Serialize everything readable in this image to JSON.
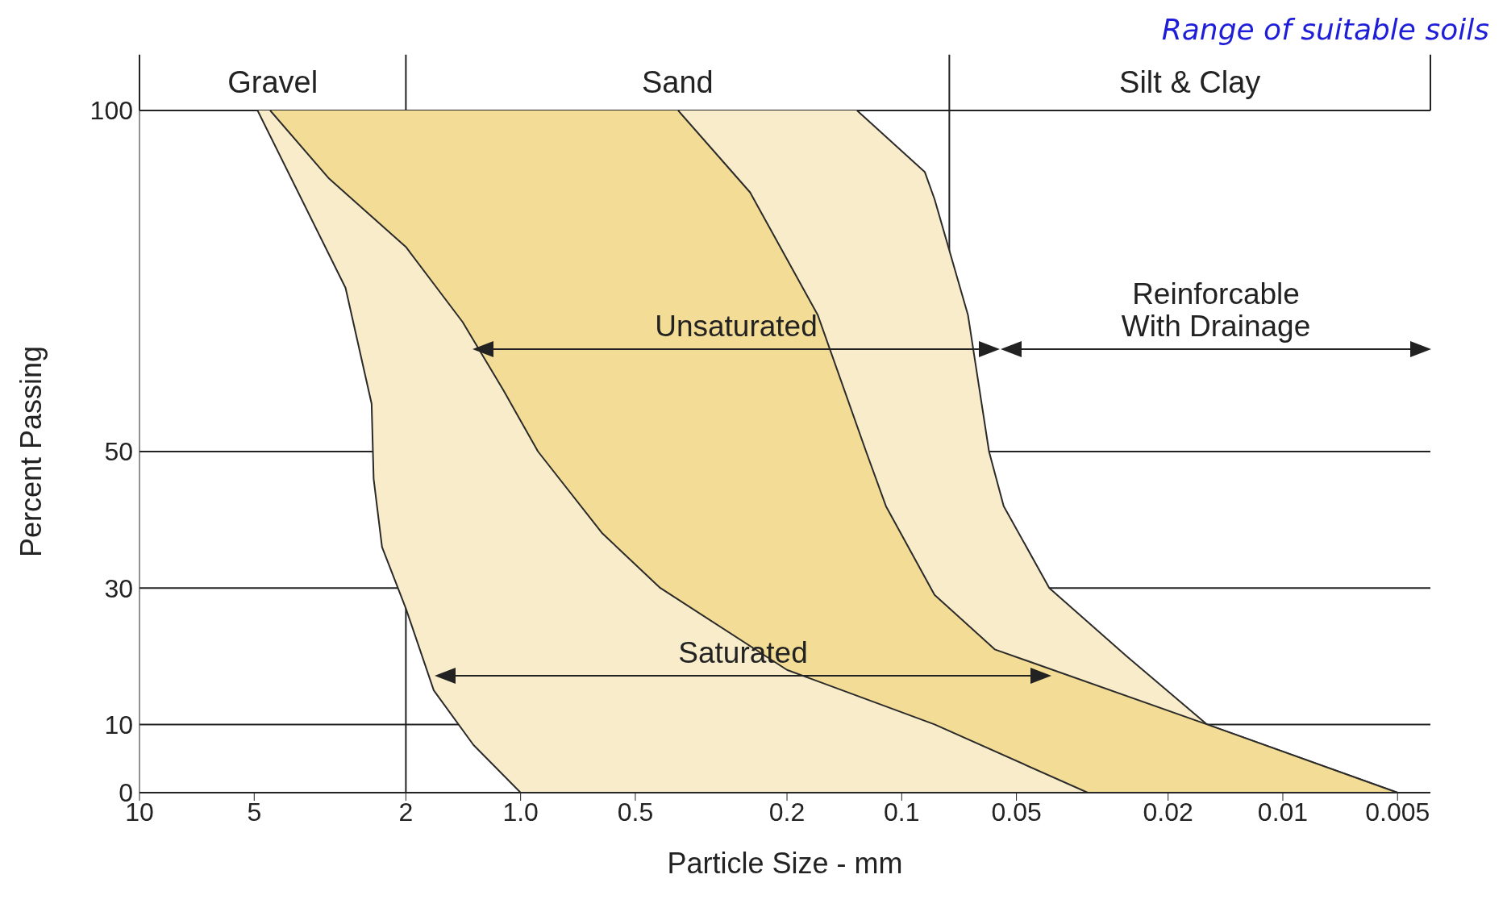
{
  "chart_data": {
    "type": "area",
    "title": "Range of suitable soils",
    "xlabel": "Particle Size - mm",
    "ylabel": "Percent Passing",
    "log": "x",
    "grid": "y",
    "xlim": [
      10,
      0.0041
    ],
    "xticks": [
      10,
      5,
      2,
      {
        "value": 1,
        "label": "1.0"
      },
      0.5,
      0.2,
      0.1,
      0.05,
      0.02,
      0.01,
      0.005
    ],
    "ylim": [
      0,
      100
    ],
    "yticks": [
      0,
      10,
      30,
      50,
      100
    ],
    "ref_lines": [
      {
        "axis": "x",
        "value": 2
      },
      {
        "axis": "x",
        "value": 0.075
      }
    ],
    "series": [
      {
        "color": "#f8ecca",
        "x": [
          4.9,
          2.88,
          2.46,
          2.43,
          2.31,
          2,
          1.69,
          1.33,
          1,
          0.005,
          0.0158,
          0.0257,
          0.041,
          0.054,
          0.059,
          0.067,
          0.082,
          0.087,
          0.131
        ],
        "values": [
          100,
          74,
          57,
          46,
          36,
          27,
          15,
          7,
          0,
          0,
          10,
          20,
          30,
          42,
          50,
          70,
          87,
          91,
          100
        ]
      },
      {
        "color": "#f3dc95",
        "x": [
          4.54,
          3.18,
          2,
          1.42,
          1.11,
          0.9,
          0.61,
          0.43,
          0.2,
          0.082,
          0.0325,
          0.005,
          0.0158,
          0.057,
          0.082,
          0.11,
          0.124,
          0.166,
          0.25,
          0.386
        ],
        "values": [
          100,
          90,
          80,
          69,
          59,
          50,
          38,
          30,
          18,
          10,
          0,
          0,
          10,
          21,
          29,
          42,
          50,
          70,
          88,
          100
        ]
      }
    ],
    "annotations": [
      "Gravel",
      "Sand",
      "Silt & Clay",
      "Unsaturated",
      "Reinforcable With Drainage",
      "Saturated"
    ]
  }
}
